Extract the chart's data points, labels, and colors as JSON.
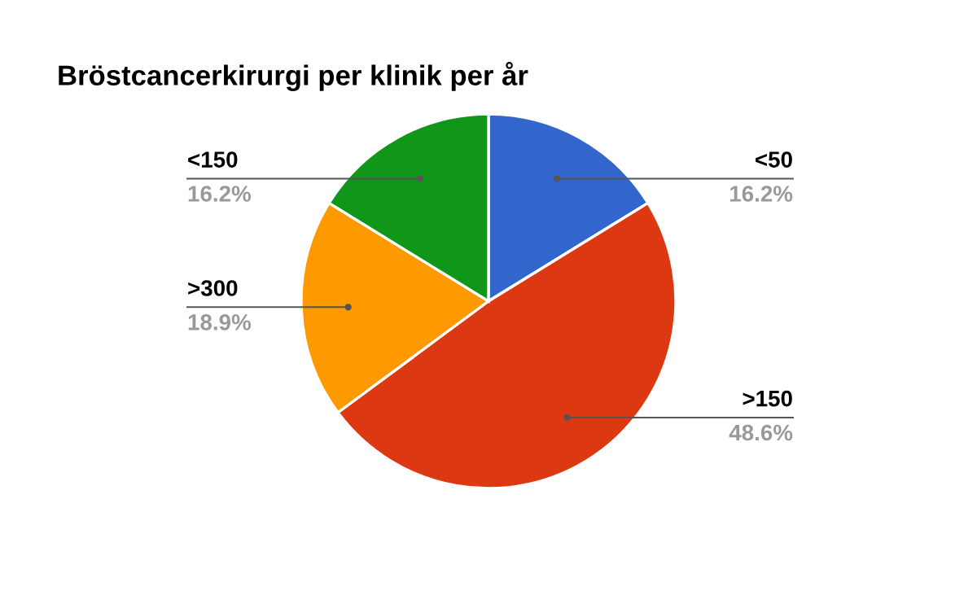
{
  "chart_data": {
    "type": "pie",
    "title": "Bröstcancerkirurgi per klinik per år",
    "categories": [
      "<50",
      ">150",
      ">300",
      "<150"
    ],
    "values": [
      16.2,
      48.6,
      18.9,
      16.2
    ],
    "colors": [
      "#3366cc",
      "#dc3912",
      "#ff9900",
      "#109618"
    ],
    "value_labels": [
      "16.2%",
      "48.6%",
      "18.9%",
      "16.2%"
    ]
  }
}
